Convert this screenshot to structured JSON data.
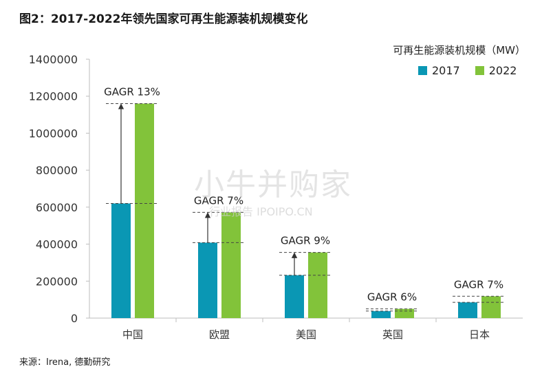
{
  "title": "图2：2017-2022年领先国家可再生能源装机规模变化",
  "unit_label": "可再生能源装机规模（MW）",
  "source": "来源：Irena, 德勤研究",
  "watermark": {
    "main": "小牛并购家",
    "sub": "行业报告 IPOIPO.CN"
  },
  "colors": {
    "s2017": "#0a97b4",
    "s2022": "#82c33a"
  },
  "chart_data": {
    "type": "bar",
    "categories": [
      "中国",
      "欧盟",
      "美国",
      "英国",
      "日本"
    ],
    "series": [
      {
        "name": "2017",
        "values": [
          620000,
          408000,
          232000,
          38000,
          85000
        ]
      },
      {
        "name": "2022",
        "values": [
          1160000,
          572000,
          355000,
          50000,
          118000
        ]
      }
    ],
    "annotations": [
      "GAGR 13%",
      "GAGR 7%",
      "GAGR 9%",
      "GAGR 6%",
      "GAGR 7%"
    ],
    "arrows": [
      true,
      true,
      true,
      false,
      false
    ],
    "ylim": [
      0,
      1400000
    ],
    "yticks": [
      0,
      200000,
      400000,
      600000,
      800000,
      1000000,
      1200000,
      1400000
    ],
    "legend_position": "top-right",
    "grid": false
  }
}
